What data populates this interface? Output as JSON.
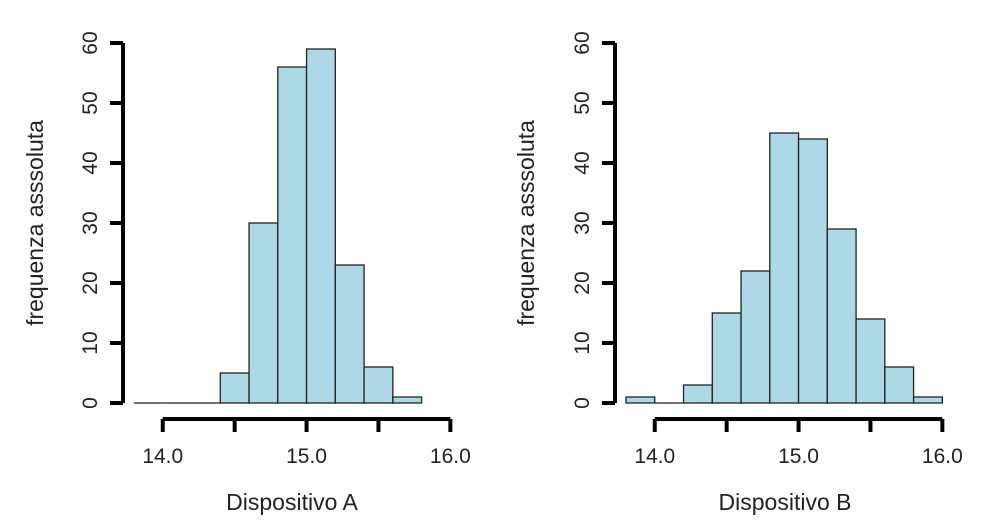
{
  "chart_data": [
    {
      "type": "bar",
      "histogram": true,
      "bin_width": 0.2,
      "bins": [
        {
          "x0": 13.8,
          "x1": 14.0,
          "count": 0
        },
        {
          "x0": 14.0,
          "x1": 14.2,
          "count": 0
        },
        {
          "x0": 14.2,
          "x1": 14.4,
          "count": 0
        },
        {
          "x0": 14.4,
          "x1": 14.6,
          "count": 5
        },
        {
          "x0": 14.6,
          "x1": 14.8,
          "count": 30
        },
        {
          "x0": 14.8,
          "x1": 15.0,
          "count": 56
        },
        {
          "x0": 15.0,
          "x1": 15.2,
          "count": 59
        },
        {
          "x0": 15.2,
          "x1": 15.4,
          "count": 23
        },
        {
          "x0": 15.4,
          "x1": 15.6,
          "count": 6
        },
        {
          "x0": 15.6,
          "x1": 15.8,
          "count": 1
        }
      ],
      "xlabel": "Dispositivo A",
      "ylabel": "frequenza asssoluta",
      "xlim": [
        13.8,
        16.0
      ],
      "ylim": [
        0,
        60
      ],
      "xticks": [
        14.0,
        14.5,
        15.0,
        15.5,
        16.0
      ],
      "xtick_labels": [
        "14.0",
        "",
        "15.0",
        "",
        "16.0"
      ],
      "yticks": [
        0,
        10,
        20,
        30,
        40,
        50,
        60
      ],
      "ytick_labels": [
        "0",
        "10",
        "20",
        "30",
        "40",
        "50",
        "60"
      ],
      "bar_color": "#add8e6",
      "grid": false
    },
    {
      "type": "bar",
      "histogram": true,
      "bin_width": 0.2,
      "bins": [
        {
          "x0": 13.8,
          "x1": 14.0,
          "count": 1
        },
        {
          "x0": 14.0,
          "x1": 14.2,
          "count": 0
        },
        {
          "x0": 14.2,
          "x1": 14.4,
          "count": 3
        },
        {
          "x0": 14.4,
          "x1": 14.6,
          "count": 15
        },
        {
          "x0": 14.6,
          "x1": 14.8,
          "count": 22
        },
        {
          "x0": 14.8,
          "x1": 15.0,
          "count": 45
        },
        {
          "x0": 15.0,
          "x1": 15.2,
          "count": 44
        },
        {
          "x0": 15.2,
          "x1": 15.4,
          "count": 29
        },
        {
          "x0": 15.4,
          "x1": 15.6,
          "count": 14
        },
        {
          "x0": 15.6,
          "x1": 15.8,
          "count": 6
        },
        {
          "x0": 15.8,
          "x1": 16.0,
          "count": 1
        }
      ],
      "xlabel": "Dispositivo B",
      "ylabel": "frequenza asssoluta",
      "xlim": [
        13.8,
        16.0
      ],
      "ylim": [
        0,
        60
      ],
      "xticks": [
        14.0,
        14.5,
        15.0,
        15.5,
        16.0
      ],
      "xtick_labels": [
        "14.0",
        "",
        "15.0",
        "",
        "16.0"
      ],
      "yticks": [
        0,
        10,
        20,
        30,
        40,
        50,
        60
      ],
      "ytick_labels": [
        "0",
        "10",
        "20",
        "30",
        "40",
        "50",
        "60"
      ],
      "bar_color": "#add8e6",
      "grid": false
    }
  ]
}
